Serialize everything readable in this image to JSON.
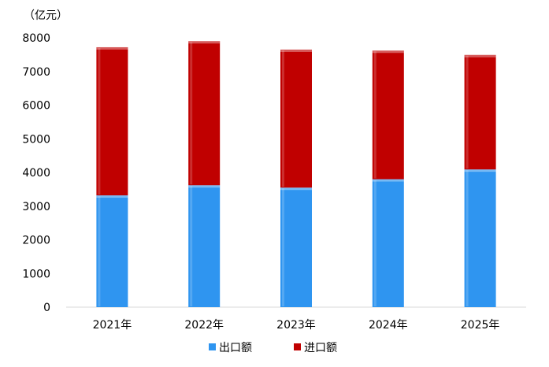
{
  "chart_data": {
    "type": "bar",
    "stacked": true,
    "unit": "（亿元）",
    "categories": [
      "2021年",
      "2022年",
      "2023年",
      "2024年",
      "2025年"
    ],
    "series": [
      {
        "name": "出口额",
        "color": "#2f95f0",
        "values": [
          3320,
          3620,
          3550,
          3800,
          4090
        ]
      },
      {
        "name": "进口额",
        "color": "#c00000",
        "values": [
          4400,
          4280,
          4100,
          3820,
          3400
        ]
      }
    ],
    "ylim": [
      0,
      8000
    ],
    "yticks": [
      0,
      1000,
      2000,
      3000,
      4000,
      5000,
      6000,
      7000,
      8000
    ],
    "grid": false,
    "legend_position": "bottom"
  }
}
